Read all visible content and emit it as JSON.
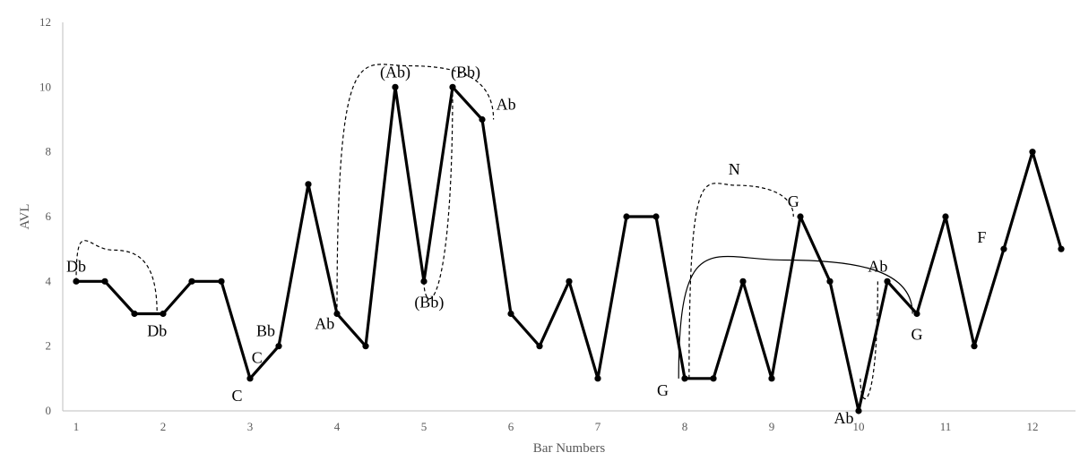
{
  "chart_data": {
    "type": "line",
    "xlabel": "Bar Numbers",
    "ylabel": "AVL",
    "xlim": [
      1,
      12.33
    ],
    "ylim": [
      0,
      12
    ],
    "x_ticks": [
      1,
      2,
      3,
      4,
      5,
      6,
      7,
      8,
      9,
      10,
      11,
      12
    ],
    "y_ticks": [
      0,
      2,
      4,
      6,
      8,
      10,
      12
    ],
    "grid": false,
    "legend": "none",
    "colors": {
      "line": "#000000",
      "axis": "#bfbfbf",
      "text": "#595959"
    },
    "series": [
      {
        "points": [
          [
            1,
            4
          ],
          [
            1.33,
            4
          ],
          [
            1.67,
            3
          ],
          [
            2,
            3
          ],
          [
            2.33,
            4
          ],
          [
            2.67,
            4
          ],
          [
            3,
            1
          ],
          [
            3.33,
            2
          ],
          [
            3.67,
            7
          ],
          [
            4,
            3
          ],
          [
            4.33,
            2
          ],
          [
            4.67,
            10
          ],
          [
            5,
            4
          ],
          [
            5.33,
            10
          ],
          [
            5.67,
            9
          ],
          [
            6,
            3
          ],
          [
            6.33,
            2
          ],
          [
            6.67,
            4
          ],
          [
            7,
            1
          ],
          [
            7.33,
            6
          ],
          [
            7.67,
            6
          ],
          [
            8,
            1
          ],
          [
            8.33,
            1
          ],
          [
            8.67,
            4
          ],
          [
            9,
            1
          ],
          [
            9.33,
            6
          ],
          [
            9.67,
            4
          ],
          [
            10,
            0
          ],
          [
            10.33,
            4
          ],
          [
            10.67,
            3
          ],
          [
            11,
            6
          ],
          [
            11.33,
            2
          ],
          [
            11.67,
            5
          ],
          [
            12,
            8
          ],
          [
            12.33,
            5
          ]
        ]
      }
    ],
    "annotations": [
      {
        "text": "Db",
        "x": 1,
        "y": 4
      },
      {
        "text": "Db",
        "x": 1.93,
        "y": 3
      },
      {
        "text": "C",
        "x": 2.85,
        "y": 1
      },
      {
        "text": "C",
        "x": 3.08,
        "y": 2
      },
      {
        "text": "Bb",
        "x": 3.18,
        "y": 2
      },
      {
        "text": "Ab",
        "x": 3.92,
        "y": 3
      },
      {
        "text": "(Ab)",
        "x": 4.67,
        "y": 10
      },
      {
        "text": "(Bb)",
        "x": 5.06,
        "y": 4
      },
      {
        "text": "(Bb)",
        "x": 5.48,
        "y": 10
      },
      {
        "text": "Ab",
        "x": 5.8,
        "y": 9
      },
      {
        "text": "G",
        "x": 7.85,
        "y": 1
      },
      {
        "text": "N",
        "x": 8.57,
        "y": 7
      },
      {
        "text": "G",
        "x": 9.25,
        "y": 6
      },
      {
        "text": "Ab",
        "x": 9.83,
        "y": 0
      },
      {
        "text": "Ab",
        "x": 10.22,
        "y": 4
      },
      {
        "text": "G",
        "x": 10.67,
        "y": 3
      },
      {
        "text": "F",
        "x": 11.52,
        "y": 5
      }
    ],
    "connector_arcs": [
      {
        "style": "dashed",
        "from": [
          1,
          4
        ],
        "to": [
          1.93,
          3
        ]
      },
      {
        "style": "dashed",
        "from": [
          4,
          3
        ],
        "to": [
          5.8,
          9
        ]
      },
      {
        "style": "dashed",
        "from": [
          5,
          4
        ],
        "to": [
          5.33,
          10
        ]
      },
      {
        "style": "solid",
        "from": [
          7.93,
          1
        ],
        "to": [
          10.62,
          3
        ]
      },
      {
        "style": "dashed",
        "from": [
          8.05,
          1
        ],
        "to": [
          9.25,
          6
        ]
      },
      {
        "style": "dashed",
        "from": [
          10.02,
          1
        ],
        "to": [
          10.22,
          4
        ]
      }
    ]
  }
}
